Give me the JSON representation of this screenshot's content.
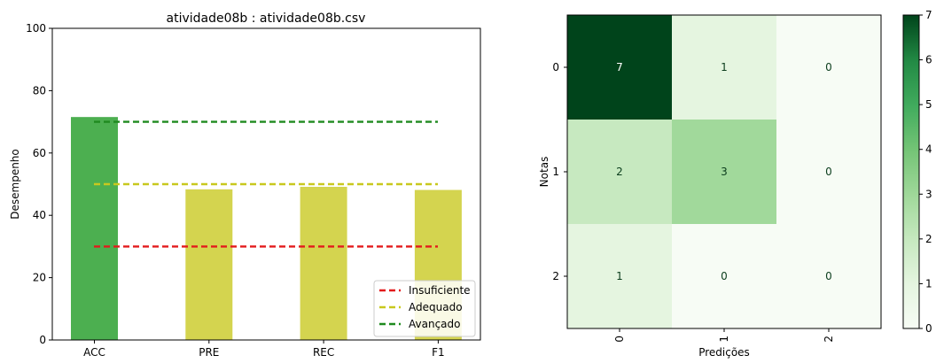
{
  "chart_data": [
    {
      "type": "bar",
      "title": "atividade08b : atividade08b.csv",
      "xlabel": "",
      "ylabel": "Desempenho",
      "ylim": [
        0,
        100
      ],
      "yticks": [
        0,
        20,
        40,
        60,
        80,
        100
      ],
      "categories": [
        "ACC",
        "PRE",
        "REC",
        "F1"
      ],
      "values": [
        71.4,
        48.2,
        49.0,
        48.0
      ],
      "bar_colors": [
        "#4caf50",
        "#d4d44f",
        "#d4d44f",
        "#d4d44f"
      ],
      "reference_lines": [
        {
          "name": "Insuficiente",
          "value": 30,
          "color": "#e31a1c"
        },
        {
          "name": "Adequado",
          "value": 50,
          "color": "#c8c81e"
        },
        {
          "name": "Avançado",
          "value": 70,
          "color": "#1f8a1f"
        }
      ],
      "legend_position": "lower-right",
      "grid": false
    },
    {
      "type": "heatmap",
      "title": "",
      "xlabel": "Predições",
      "ylabel": "Notas",
      "x_categories": [
        "0",
        "1",
        "2"
      ],
      "y_categories": [
        "0",
        "1",
        "2"
      ],
      "matrix": [
        [
          7,
          1,
          0
        ],
        [
          2,
          3,
          0
        ],
        [
          1,
          0,
          0
        ]
      ],
      "colormap": "Greens",
      "vmin": 0,
      "vmax": 7,
      "colorbar_ticks": [
        0,
        1,
        2,
        3,
        4,
        5,
        6,
        7
      ]
    }
  ]
}
